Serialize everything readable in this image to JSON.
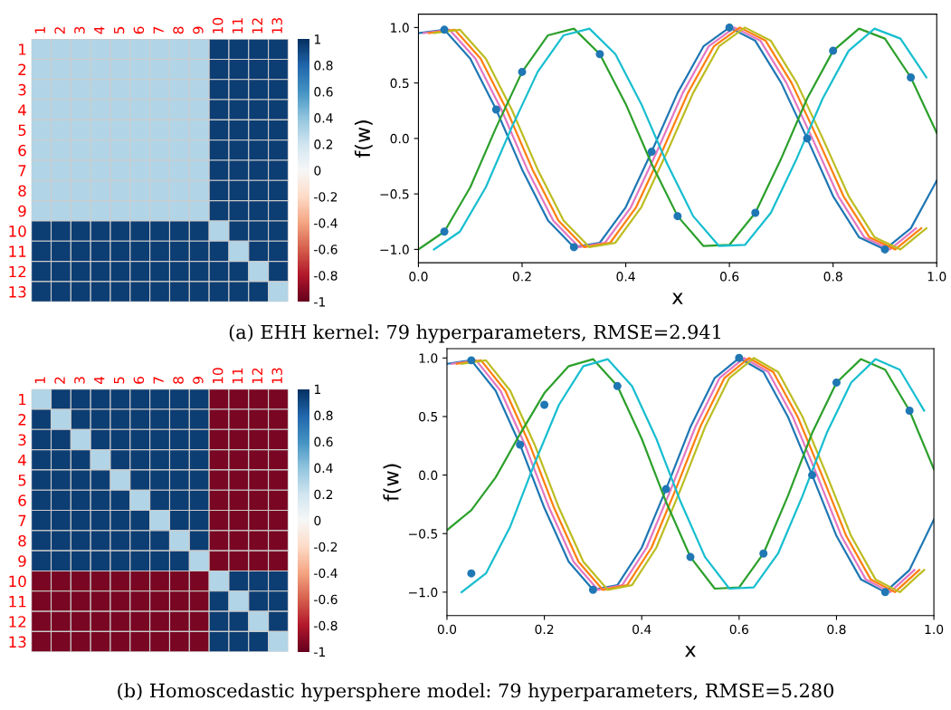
{
  "chart_data": [
    {
      "type": "heatmap",
      "categories": [
        "1",
        "2",
        "3",
        "4",
        "5",
        "6",
        "7",
        "8",
        "9",
        "10",
        "11",
        "12",
        "13"
      ],
      "y_categories": [
        "1",
        "2",
        "3",
        "4",
        "5",
        "6",
        "7",
        "8",
        "9",
        "10",
        "11",
        "12",
        "13"
      ],
      "clim": [
        -1,
        1
      ],
      "cticks": [
        -1,
        -0.8,
        -0.6,
        -0.4,
        -0.2,
        0,
        0.2,
        0.4,
        0.6,
        0.8,
        1
      ],
      "cells": [
        [
          0.3,
          0.3,
          0.3,
          0.3,
          0.3,
          0.3,
          0.3,
          0.3,
          0.3,
          0.95,
          0.95,
          0.95,
          0.95
        ],
        [
          0.3,
          0.3,
          0.3,
          0.3,
          0.3,
          0.3,
          0.3,
          0.3,
          0.3,
          0.95,
          0.95,
          0.95,
          0.95
        ],
        [
          0.3,
          0.3,
          0.3,
          0.3,
          0.3,
          0.3,
          0.3,
          0.3,
          0.3,
          0.95,
          0.95,
          0.95,
          0.95
        ],
        [
          0.3,
          0.3,
          0.3,
          0.3,
          0.3,
          0.3,
          0.3,
          0.3,
          0.3,
          0.95,
          0.95,
          0.95,
          0.95
        ],
        [
          0.3,
          0.3,
          0.3,
          0.3,
          0.3,
          0.3,
          0.3,
          0.3,
          0.3,
          0.95,
          0.95,
          0.95,
          0.95
        ],
        [
          0.3,
          0.3,
          0.3,
          0.3,
          0.3,
          0.3,
          0.3,
          0.3,
          0.3,
          0.95,
          0.95,
          0.95,
          0.95
        ],
        [
          0.3,
          0.3,
          0.3,
          0.3,
          0.3,
          0.3,
          0.3,
          0.3,
          0.3,
          0.95,
          0.95,
          0.95,
          0.95
        ],
        [
          0.3,
          0.3,
          0.3,
          0.3,
          0.3,
          0.3,
          0.3,
          0.3,
          0.3,
          0.95,
          0.95,
          0.95,
          0.95
        ],
        [
          0.3,
          0.3,
          0.3,
          0.3,
          0.3,
          0.3,
          0.3,
          0.3,
          0.3,
          0.95,
          0.95,
          0.95,
          0.95
        ],
        [
          0.95,
          0.95,
          0.95,
          0.95,
          0.95,
          0.95,
          0.95,
          0.95,
          0.95,
          0.3,
          0.95,
          0.95,
          0.95
        ],
        [
          0.95,
          0.95,
          0.95,
          0.95,
          0.95,
          0.95,
          0.95,
          0.95,
          0.95,
          0.95,
          0.3,
          0.95,
          0.95
        ],
        [
          0.95,
          0.95,
          0.95,
          0.95,
          0.95,
          0.95,
          0.95,
          0.95,
          0.95,
          0.95,
          0.95,
          0.3,
          0.95
        ],
        [
          0.95,
          0.95,
          0.95,
          0.95,
          0.95,
          0.95,
          0.95,
          0.95,
          0.95,
          0.95,
          0.95,
          0.95,
          0.3
        ]
      ],
      "annotations": [
        "(a) EHH kernel: 79 hyperparameters, RMSE=2.941"
      ]
    },
    {
      "type": "line",
      "xlabel": "x",
      "ylabel": "f(w)",
      "xlim": [
        0,
        1
      ],
      "ylim": [
        -1.12,
        1.12
      ],
      "xticks": [
        {
          "value": 0,
          "label": "0.0"
        },
        {
          "value": 0.2,
          "label": "0.2"
        },
        {
          "value": 0.4,
          "label": "0.4"
        },
        {
          "value": 0.6,
          "label": "0.6"
        },
        {
          "value": 0.8,
          "label": "0.8"
        },
        {
          "value": 1,
          "label": "1.0"
        }
      ],
      "yticks": [
        {
          "value": -1,
          "label": "−1.0"
        },
        {
          "value": -0.5,
          "label": "−0.5"
        },
        {
          "value": 0,
          "label": "0.0"
        },
        {
          "value": 0.5,
          "label": "0.5"
        },
        {
          "value": 1,
          "label": "1.0"
        }
      ],
      "series": [
        {
          "color": "#1f77b4",
          "x": [
            0,
            0.05,
            0.1,
            0.15,
            0.2,
            0.25,
            0.3,
            0.35,
            0.4,
            0.45,
            0.5,
            0.55,
            0.6,
            0.65,
            0.7,
            0.75,
            0.8,
            0.85,
            0.9,
            0.95,
            1.0
          ],
          "values": [
            0.95,
            0.98,
            0.72,
            0.26,
            -0.28,
            -0.74,
            -0.98,
            -0.94,
            -0.62,
            -0.12,
            0.41,
            0.83,
            1.0,
            0.88,
            0.5,
            0.0,
            -0.52,
            -0.89,
            -1.0,
            -0.81,
            -0.38
          ]
        },
        {
          "color": "#e377c2",
          "x": [
            0.01,
            0.06,
            0.11,
            0.16,
            0.21,
            0.26,
            0.31,
            0.36,
            0.41,
            0.46,
            0.51,
            0.56,
            0.61,
            0.66,
            0.71,
            0.76,
            0.81,
            0.86,
            0.91,
            0.96
          ],
          "values": [
            0.95,
            0.98,
            0.72,
            0.26,
            -0.28,
            -0.74,
            -0.98,
            -0.94,
            -0.62,
            -0.12,
            0.41,
            0.83,
            1.0,
            0.88,
            0.5,
            0.0,
            -0.52,
            -0.89,
            -1.0,
            -0.81
          ]
        },
        {
          "color": "#ff7f0e",
          "x": [
            0.02,
            0.07,
            0.12,
            0.17,
            0.22,
            0.27,
            0.32,
            0.37,
            0.42,
            0.47,
            0.52,
            0.57,
            0.62,
            0.67,
            0.72,
            0.77,
            0.82,
            0.87,
            0.92,
            0.97
          ],
          "values": [
            0.95,
            0.98,
            0.72,
            0.26,
            -0.28,
            -0.74,
            -0.98,
            -0.94,
            -0.62,
            -0.12,
            0.41,
            0.83,
            1.0,
            0.88,
            0.5,
            0.0,
            -0.52,
            -0.89,
            -1.0,
            -0.81
          ]
        },
        {
          "color": "#bcbd22",
          "x": [
            0.03,
            0.08,
            0.13,
            0.18,
            0.23,
            0.28,
            0.33,
            0.38,
            0.43,
            0.48,
            0.53,
            0.58,
            0.63,
            0.68,
            0.73,
            0.78,
            0.83,
            0.88,
            0.93,
            0.98
          ],
          "values": [
            0.95,
            0.98,
            0.72,
            0.26,
            -0.28,
            -0.74,
            -0.98,
            -0.94,
            -0.62,
            -0.12,
            0.41,
            0.83,
            1.0,
            0.88,
            0.5,
            0.0,
            -0.52,
            -0.89,
            -1.0,
            -0.81
          ]
        },
        {
          "color": "#2ca02c",
          "x": [
            0,
            0.05,
            0.1,
            0.15,
            0.2,
            0.25,
            0.3,
            0.35,
            0.4,
            0.45,
            0.5,
            0.55,
            0.6,
            0.65,
            0.7,
            0.75,
            0.8,
            0.85,
            0.9,
            0.95,
            1.0
          ],
          "values": [
            -1.0,
            -0.84,
            -0.44,
            0.1,
            0.6,
            0.93,
            0.99,
            0.76,
            0.31,
            -0.23,
            -0.7,
            -0.97,
            -0.96,
            -0.67,
            -0.18,
            0.36,
            0.79,
            0.99,
            0.9,
            0.55,
            0.05
          ]
        },
        {
          "color": "#17becf",
          "x": [
            0.03,
            0.08,
            0.13,
            0.18,
            0.23,
            0.28,
            0.33,
            0.38,
            0.43,
            0.48,
            0.53,
            0.58,
            0.63,
            0.68,
            0.73,
            0.78,
            0.83,
            0.88,
            0.93,
            0.98
          ],
          "values": [
            -1.0,
            -0.84,
            -0.44,
            0.1,
            0.6,
            0.93,
            0.99,
            0.76,
            0.31,
            -0.23,
            -0.7,
            -0.97,
            -0.96,
            -0.67,
            -0.18,
            0.36,
            0.79,
            0.99,
            0.9,
            0.55
          ]
        },
        {
          "type": "scatter",
          "marker": "circle",
          "color": "#1f77b4",
          "x": [
            0.05,
            0.15,
            0.3,
            0.45,
            0.6,
            0.75,
            0.9,
            0.05,
            0.2,
            0.35,
            0.5,
            0.65,
            0.8,
            0.95
          ],
          "values": [
            0.98,
            0.26,
            -0.98,
            -0.12,
            1.0,
            0.0,
            -1.0,
            -0.84,
            0.6,
            0.76,
            -0.7,
            -0.67,
            0.79,
            0.55
          ]
        }
      ]
    },
    {
      "type": "heatmap",
      "categories": [
        "1",
        "2",
        "3",
        "4",
        "5",
        "6",
        "7",
        "8",
        "9",
        "10",
        "11",
        "12",
        "13"
      ],
      "y_categories": [
        "1",
        "2",
        "3",
        "4",
        "5",
        "6",
        "7",
        "8",
        "9",
        "10",
        "11",
        "12",
        "13"
      ],
      "clim": [
        -1,
        1
      ],
      "cticks": [
        -1,
        -0.8,
        -0.6,
        -0.4,
        -0.2,
        0,
        0.2,
        0.4,
        0.6,
        0.8,
        1
      ],
      "cells": [
        [
          0.3,
          0.95,
          0.95,
          0.95,
          0.95,
          0.95,
          0.95,
          0.95,
          0.95,
          -0.95,
          -0.95,
          -0.95,
          -0.95
        ],
        [
          0.95,
          0.3,
          0.95,
          0.95,
          0.95,
          0.95,
          0.95,
          0.95,
          0.95,
          -0.95,
          -0.95,
          -0.95,
          -0.95
        ],
        [
          0.95,
          0.95,
          0.3,
          0.95,
          0.95,
          0.95,
          0.95,
          0.95,
          0.95,
          -0.95,
          -0.95,
          -0.95,
          -0.95
        ],
        [
          0.95,
          0.95,
          0.95,
          0.3,
          0.95,
          0.95,
          0.95,
          0.95,
          0.95,
          -0.95,
          -0.95,
          -0.95,
          -0.95
        ],
        [
          0.95,
          0.95,
          0.95,
          0.95,
          0.3,
          0.95,
          0.95,
          0.95,
          0.95,
          -0.95,
          -0.95,
          -0.95,
          -0.95
        ],
        [
          0.95,
          0.95,
          0.95,
          0.95,
          0.95,
          0.3,
          0.95,
          0.95,
          0.95,
          -0.95,
          -0.95,
          -0.95,
          -0.95
        ],
        [
          0.95,
          0.95,
          0.95,
          0.95,
          0.95,
          0.95,
          0.3,
          0.95,
          0.95,
          -0.95,
          -0.95,
          -0.95,
          -0.95
        ],
        [
          0.95,
          0.95,
          0.95,
          0.95,
          0.95,
          0.95,
          0.95,
          0.3,
          0.95,
          -0.95,
          -0.95,
          -0.95,
          -0.95
        ],
        [
          0.95,
          0.95,
          0.95,
          0.95,
          0.95,
          0.95,
          0.95,
          0.95,
          0.3,
          -0.95,
          -0.95,
          -0.95,
          -0.95
        ],
        [
          -0.95,
          -0.95,
          -0.95,
          -0.95,
          -0.95,
          -0.95,
          -0.95,
          -0.95,
          -0.95,
          0.3,
          0.95,
          0.95,
          0.95
        ],
        [
          -0.95,
          -0.95,
          -0.95,
          -0.95,
          -0.95,
          -0.95,
          -0.95,
          -0.95,
          -0.95,
          0.95,
          0.3,
          0.95,
          0.95
        ],
        [
          -0.95,
          -0.95,
          -0.95,
          -0.95,
          -0.95,
          -0.95,
          -0.95,
          -0.95,
          -0.95,
          0.95,
          0.95,
          0.3,
          0.95
        ],
        [
          -0.95,
          -0.95,
          -0.95,
          -0.95,
          -0.95,
          -0.95,
          -0.95,
          -0.95,
          -0.95,
          0.95,
          0.95,
          0.95,
          0.3
        ]
      ],
      "annotations": [
        "(b) Homoscedastic hypersphere model: 79 hyperparameters, RMSE=5.280"
      ]
    },
    {
      "type": "line",
      "xlabel": "x",
      "ylabel": "f(w)",
      "xlim": [
        0,
        1
      ],
      "ylim": [
        -1.2,
        1.08
      ],
      "xticks": [
        {
          "value": 0,
          "label": "0.0"
        },
        {
          "value": 0.2,
          "label": "0.2"
        },
        {
          "value": 0.4,
          "label": "0.4"
        },
        {
          "value": 0.6,
          "label": "0.6"
        },
        {
          "value": 0.8,
          "label": "0.8"
        },
        {
          "value": 1,
          "label": "1.0"
        }
      ],
      "yticks": [
        {
          "value": -1,
          "label": "−1.0"
        },
        {
          "value": -0.5,
          "label": "−0.5"
        },
        {
          "value": 0,
          "label": "0.0"
        },
        {
          "value": 0.5,
          "label": "0.5"
        },
        {
          "value": 1,
          "label": "1.0"
        }
      ],
      "series": [
        {
          "color": "#1f77b4",
          "x": [
            0,
            0.05,
            0.1,
            0.15,
            0.2,
            0.25,
            0.3,
            0.35,
            0.4,
            0.45,
            0.5,
            0.55,
            0.6,
            0.65,
            0.7,
            0.75,
            0.8,
            0.85,
            0.9,
            0.95,
            1.0
          ],
          "values": [
            0.95,
            0.98,
            0.72,
            0.26,
            -0.28,
            -0.74,
            -0.98,
            -0.94,
            -0.62,
            -0.12,
            0.41,
            0.83,
            1.0,
            0.88,
            0.5,
            0.0,
            -0.52,
            -0.89,
            -1.0,
            -0.81,
            -0.38
          ]
        },
        {
          "color": "#e377c2",
          "x": [
            0.01,
            0.06,
            0.11,
            0.16,
            0.21,
            0.26,
            0.31,
            0.36,
            0.41,
            0.46,
            0.51,
            0.56,
            0.61,
            0.66,
            0.71,
            0.76,
            0.81,
            0.86,
            0.91,
            0.96
          ],
          "values": [
            0.95,
            0.98,
            0.72,
            0.26,
            -0.28,
            -0.74,
            -0.98,
            -0.94,
            -0.62,
            -0.12,
            0.41,
            0.83,
            1.0,
            0.88,
            0.5,
            0.0,
            -0.52,
            -0.89,
            -1.0,
            -0.81
          ]
        },
        {
          "color": "#ff7f0e",
          "x": [
            0.02,
            0.07,
            0.12,
            0.17,
            0.22,
            0.27,
            0.32,
            0.37,
            0.42,
            0.47,
            0.52,
            0.57,
            0.62,
            0.67,
            0.72,
            0.77,
            0.82,
            0.87,
            0.92,
            0.97
          ],
          "values": [
            0.95,
            0.98,
            0.72,
            0.26,
            -0.28,
            -0.74,
            -0.98,
            -0.94,
            -0.62,
            -0.12,
            0.41,
            0.83,
            1.0,
            0.88,
            0.5,
            0.0,
            -0.52,
            -0.89,
            -1.0,
            -0.81
          ]
        },
        {
          "color": "#bcbd22",
          "x": [
            0.03,
            0.08,
            0.13,
            0.18,
            0.23,
            0.28,
            0.33,
            0.38,
            0.43,
            0.48,
            0.53,
            0.58,
            0.63,
            0.68,
            0.73,
            0.78,
            0.83,
            0.88,
            0.93,
            0.98
          ],
          "values": [
            0.95,
            0.98,
            0.72,
            0.26,
            -0.28,
            -0.74,
            -0.98,
            -0.94,
            -0.62,
            -0.12,
            0.41,
            0.83,
            1.0,
            0.88,
            0.5,
            0.0,
            -0.52,
            -0.89,
            -1.0,
            -0.81
          ]
        },
        {
          "color": "#2ca02c",
          "x": [
            0,
            0.05,
            0.1,
            0.15,
            0.2,
            0.25,
            0.3,
            0.35,
            0.4,
            0.45,
            0.5,
            0.55,
            0.6,
            0.65,
            0.7,
            0.75,
            0.8,
            0.85,
            0.9,
            0.95,
            1.0
          ],
          "values": [
            -0.47,
            -0.3,
            -0.02,
            0.35,
            0.7,
            0.93,
            0.99,
            0.76,
            0.31,
            -0.23,
            -0.7,
            -0.97,
            -0.96,
            -0.67,
            -0.18,
            0.36,
            0.79,
            0.99,
            0.9,
            0.55,
            0.05
          ]
        },
        {
          "color": "#17becf",
          "x": [
            0.03,
            0.08,
            0.13,
            0.18,
            0.23,
            0.28,
            0.33,
            0.38,
            0.43,
            0.48,
            0.53,
            0.58,
            0.63,
            0.68,
            0.73,
            0.78,
            0.83,
            0.88,
            0.93,
            0.98
          ],
          "values": [
            -1.0,
            -0.84,
            -0.44,
            0.1,
            0.6,
            0.93,
            0.99,
            0.76,
            0.31,
            -0.23,
            -0.7,
            -0.97,
            -0.96,
            -0.67,
            -0.18,
            0.36,
            0.79,
            0.99,
            0.9,
            0.55
          ]
        },
        {
          "type": "scatter",
          "marker": "circle",
          "color": "#1f77b4",
          "x": [
            0.05,
            0.15,
            0.3,
            0.45,
            0.6,
            0.75,
            0.9,
            0.05,
            0.2,
            0.35,
            0.5,
            0.65,
            0.8,
            0.95
          ],
          "values": [
            0.98,
            0.26,
            -0.98,
            -0.12,
            1.0,
            0.0,
            -1.0,
            -0.84,
            0.6,
            0.76,
            -0.7,
            -0.67,
            0.79,
            0.55
          ]
        }
      ]
    }
  ]
}
